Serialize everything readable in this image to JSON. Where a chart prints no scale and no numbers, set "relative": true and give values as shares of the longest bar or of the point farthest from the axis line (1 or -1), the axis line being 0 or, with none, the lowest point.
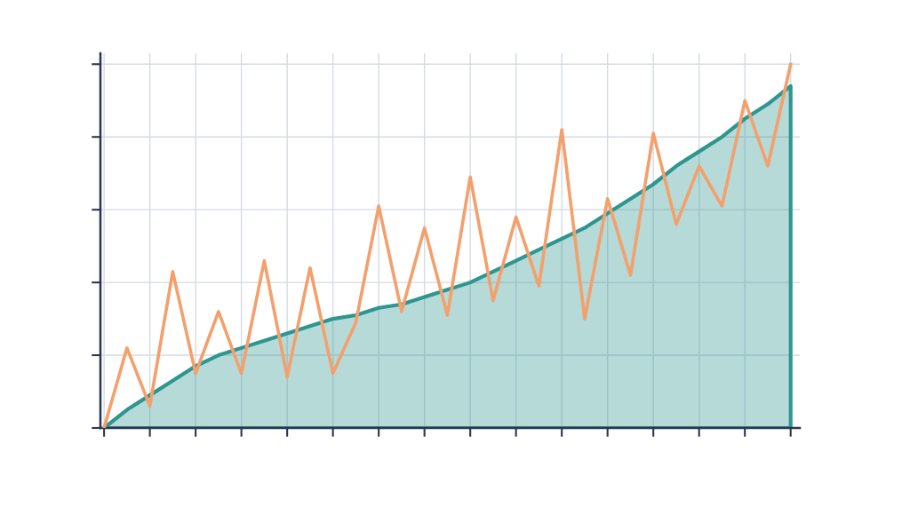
{
  "chart_data": {
    "type": "line",
    "relative": true,
    "grid": true,
    "marker": "none",
    "line_style": "solid",
    "categories": [
      null,
      null,
      null,
      null,
      null,
      null,
      null,
      null,
      null,
      null,
      null,
      null,
      null,
      null,
      null,
      null,
      null,
      null,
      null,
      null,
      null,
      null,
      null,
      null,
      null,
      null,
      null,
      null,
      null,
      null,
      null
    ],
    "tick_labels": false,
    "series": [
      {
        "type": "area",
        "color": "#2e9690",
        "values": [
          0,
          0.05,
          0.09,
          0.13,
          0.17,
          0.2,
          0.22,
          0.24,
          0.26,
          0.28,
          0.3,
          0.31,
          0.33,
          0.34,
          0.36,
          0.38,
          0.4,
          0.43,
          0.46,
          0.49,
          0.52,
          0.55,
          0.59,
          0.63,
          0.67,
          0.72,
          0.76,
          0.8,
          0.85,
          0.89,
          0.94
        ]
      },
      {
        "color": "#f4a06c",
        "values": [
          0,
          0.22,
          0.06,
          0.43,
          0.15,
          0.32,
          0.15,
          0.46,
          0.14,
          0.44,
          0.15,
          0.29,
          0.61,
          0.32,
          0.55,
          0.31,
          0.69,
          0.35,
          0.58,
          0.39,
          0.82,
          0.3,
          0.63,
          0.42,
          0.81,
          0.56,
          0.72,
          0.61,
          0.9,
          0.72,
          1.0
        ]
      }
    ]
  }
}
